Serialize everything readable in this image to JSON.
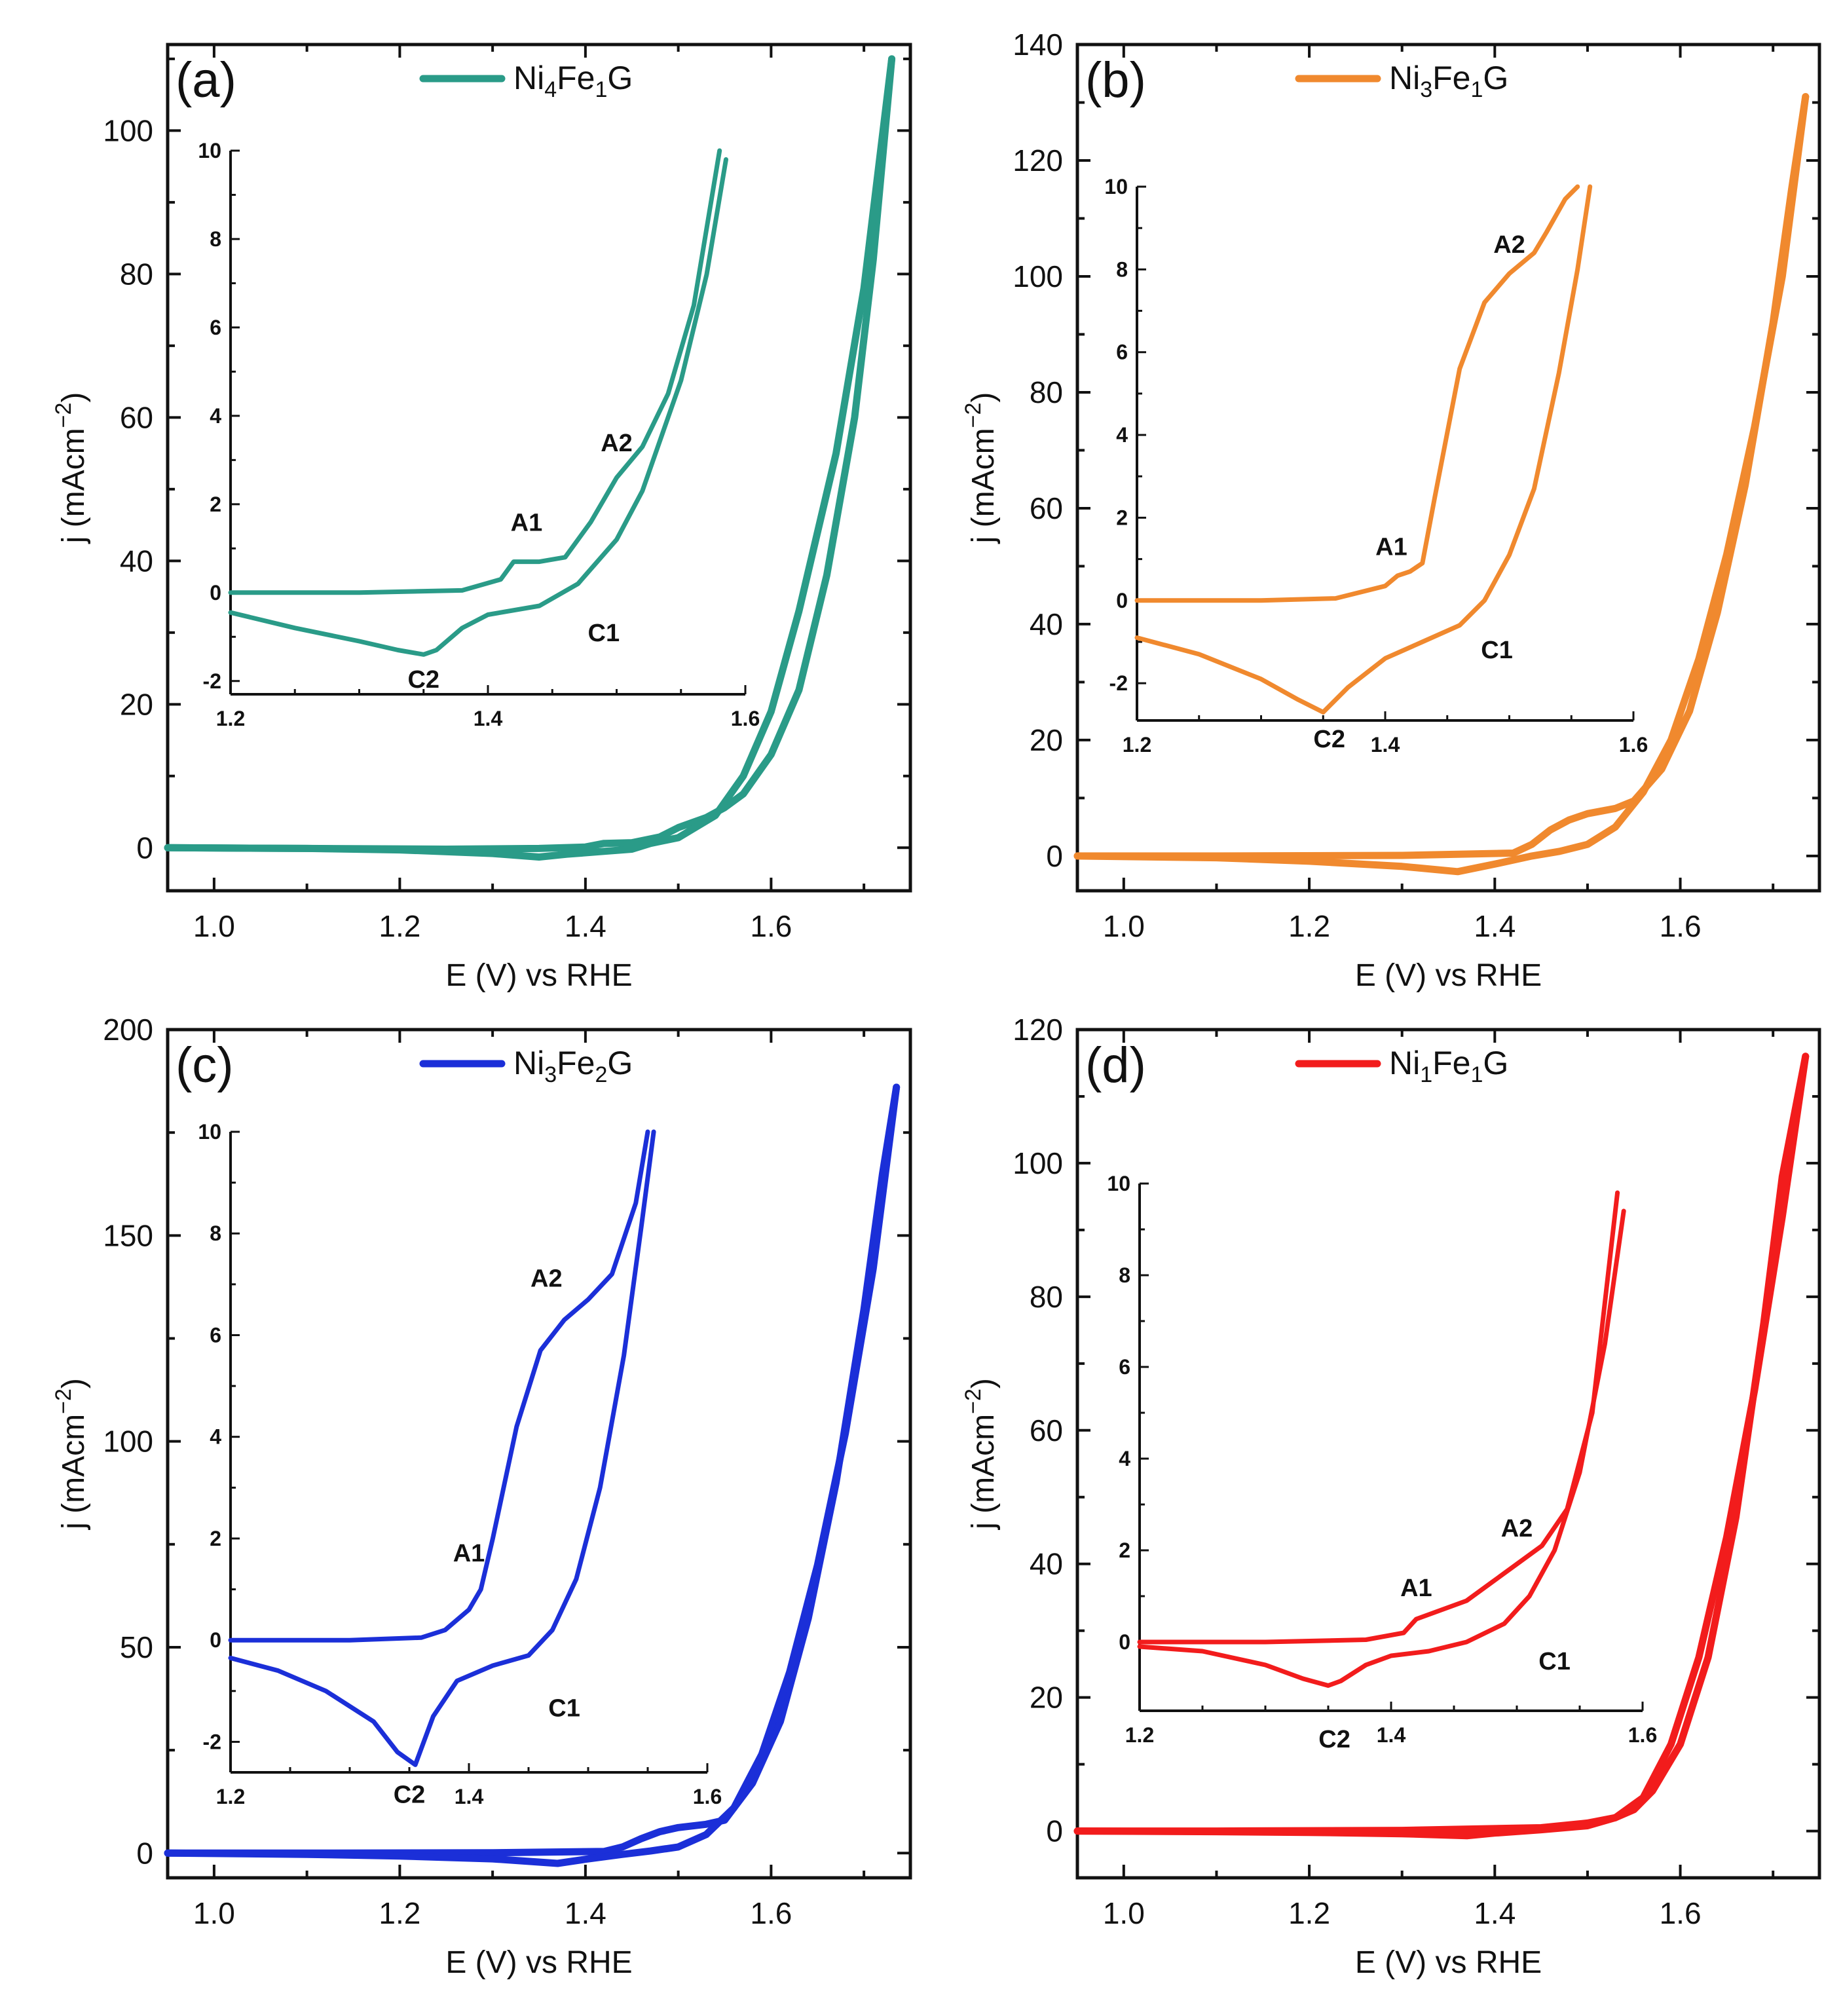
{
  "chart_data": [
    {
      "id": "a",
      "type": "line",
      "panel_label": "(a)",
      "color": "#2a9b88",
      "legend": {
        "sample": "Ni",
        "n1": "4",
        "mid": "Fe",
        "n2": "1",
        "suffix": "G"
      },
      "xlabel": "E (V) vs RHE",
      "ylabel": "j (mAcm",
      "ylabel_sup": "−2",
      "xlim": [
        0.95,
        1.75
      ],
      "ylim": [
        -6,
        112
      ],
      "xticks": [
        1.0,
        1.2,
        1.4,
        1.6
      ],
      "yticks": [
        0,
        20,
        40,
        60,
        80,
        100
      ],
      "xtick_labels": [
        "1.0",
        "1.2",
        "1.4",
        "1.6"
      ],
      "ytick_labels": [
        "0",
        "20",
        "40",
        "60",
        "80",
        "100"
      ],
      "series_forward": {
        "x": [
          0.95,
          1.1,
          1.25,
          1.35,
          1.4,
          1.42,
          1.45,
          1.48,
          1.5,
          1.53,
          1.55,
          1.57,
          1.6,
          1.63,
          1.66,
          1.69,
          1.71,
          1.73
        ],
        "y": [
          0,
          -0.1,
          -0.2,
          -0.1,
          0.1,
          0.6,
          0.7,
          1.5,
          2.8,
          4.2,
          5.6,
          7.5,
          13,
          22,
          38,
          60,
          82,
          110
        ]
      },
      "series_reverse": {
        "x": [
          1.73,
          1.7,
          1.67,
          1.63,
          1.6,
          1.57,
          1.54,
          1.5,
          1.47,
          1.45,
          1.42,
          1.38,
          1.35,
          1.3,
          1.2,
          1.1,
          0.95
        ],
        "y": [
          110,
          78,
          55,
          33,
          19,
          10,
          4.5,
          1.4,
          0.6,
          -0.2,
          -0.5,
          -0.9,
          -1.3,
          -0.8,
          -0.3,
          -0.1,
          0
        ]
      },
      "inset": {
        "xlim": [
          1.2,
          1.6
        ],
        "ylim": [
          -2.3,
          10
        ],
        "xticks": [
          1.2,
          1.4,
          1.6
        ],
        "xtick_labels": [
          "1.2",
          "1.4",
          "1.6"
        ],
        "yticks": [
          -2,
          0,
          2,
          4,
          6,
          8,
          10
        ],
        "ytick_labels": [
          "-2",
          "0",
          "2",
          "4",
          "6",
          "8",
          "10"
        ],
        "forward": {
          "x": [
            1.2,
            1.3,
            1.38,
            1.41,
            1.42,
            1.44,
            1.46,
            1.48,
            1.5,
            1.52,
            1.54,
            1.56,
            1.58
          ],
          "y": [
            0,
            0,
            0.05,
            0.3,
            0.7,
            0.7,
            0.8,
            1.6,
            2.6,
            3.3,
            4.5,
            6.5,
            10
          ]
        },
        "reverse": {
          "x": [
            1.585,
            1.57,
            1.55,
            1.52,
            1.5,
            1.47,
            1.44,
            1.4,
            1.38,
            1.36,
            1.35,
            1.33,
            1.3,
            1.25,
            1.2
          ],
          "y": [
            9.8,
            7.2,
            4.8,
            2.3,
            1.2,
            0.2,
            -0.3,
            -0.5,
            -0.8,
            -1.3,
            -1.4,
            -1.3,
            -1.1,
            -0.8,
            -0.45
          ]
        },
        "annotations": [
          {
            "label": "A1",
            "x": 1.43,
            "y": 1.4
          },
          {
            "label": "A2",
            "x": 1.5,
            "y": 3.2
          },
          {
            "label": "C1",
            "x": 1.49,
            "y": -1.1
          },
          {
            "label": "C2",
            "x": 1.35,
            "y": -2.15
          }
        ]
      }
    },
    {
      "id": "b",
      "type": "line",
      "panel_label": "(b)",
      "color": "#f0892e",
      "legend": {
        "sample": "Ni",
        "n1": "3",
        "mid": "Fe",
        "n2": "1",
        "suffix": "G"
      },
      "xlabel": "E (V) vs RHE",
      "ylabel": "j (mAcm",
      "ylabel_sup": "−2",
      "xlim": [
        0.95,
        1.75
      ],
      "ylim": [
        -6,
        140
      ],
      "xticks": [
        1.0,
        1.2,
        1.4,
        1.6
      ],
      "yticks": [
        0,
        20,
        40,
        60,
        80,
        100,
        120,
        140
      ],
      "xtick_labels": [
        "1.0",
        "1.2",
        "1.4",
        "1.6"
      ],
      "ytick_labels": [
        "0",
        "20",
        "40",
        "60",
        "80",
        "100",
        "120",
        "140"
      ],
      "series_forward": {
        "x": [
          0.95,
          1.1,
          1.3,
          1.42,
          1.44,
          1.46,
          1.48,
          1.5,
          1.53,
          1.55,
          1.58,
          1.61,
          1.64,
          1.67,
          1.7,
          1.72,
          1.735
        ],
        "y": [
          0,
          0,
          0.1,
          0.5,
          2,
          4.5,
          6.2,
          7.3,
          8.2,
          9.5,
          15,
          25,
          42,
          64,
          92,
          115,
          131
        ]
      },
      "series_reverse": {
        "x": [
          1.735,
          1.71,
          1.68,
          1.65,
          1.62,
          1.59,
          1.56,
          1.53,
          1.5,
          1.47,
          1.44,
          1.4,
          1.36,
          1.3,
          1.2,
          1.1,
          0.95
        ],
        "y": [
          131,
          100,
          74,
          52,
          34,
          20,
          11,
          5,
          2,
          0.8,
          0,
          -1.4,
          -2.7,
          -1.8,
          -0.9,
          -0.3,
          0
        ]
      },
      "inset": {
        "xlim": [
          1.2,
          1.6
        ],
        "ylim": [
          -2.9,
          10
        ],
        "xticks": [
          1.2,
          1.4,
          1.6
        ],
        "xtick_labels": [
          "1.2",
          "1.4",
          "1.6"
        ],
        "yticks": [
          -2,
          0,
          2,
          4,
          6,
          8,
          10
        ],
        "ytick_labels": [
          "-2",
          "0",
          "2",
          "4",
          "6",
          "8",
          "10"
        ],
        "forward": {
          "x": [
            1.2,
            1.3,
            1.36,
            1.4,
            1.41,
            1.42,
            1.43,
            1.44,
            1.46,
            1.48,
            1.5,
            1.52,
            1.53,
            1.545,
            1.555
          ],
          "y": [
            0,
            0,
            0.05,
            0.35,
            0.6,
            0.7,
            0.9,
            2.5,
            5.6,
            7.2,
            7.9,
            8.4,
            8.9,
            9.7,
            10
          ]
        },
        "reverse": {
          "x": [
            1.565,
            1.555,
            1.54,
            1.52,
            1.5,
            1.48,
            1.46,
            1.43,
            1.4,
            1.37,
            1.35,
            1.33,
            1.3,
            1.25,
            1.2
          ],
          "y": [
            10,
            8,
            5.5,
            2.7,
            1.1,
            0,
            -0.6,
            -1,
            -1.4,
            -2.1,
            -2.7,
            -2.4,
            -1.9,
            -1.3,
            -0.9
          ]
        },
        "annotations": [
          {
            "label": "A1",
            "x": 1.405,
            "y": 1.1
          },
          {
            "label": "A2",
            "x": 1.5,
            "y": 8.4
          },
          {
            "label": "C1",
            "x": 1.49,
            "y": -1.4
          },
          {
            "label": "C2",
            "x": 1.355,
            "y": -3.55
          }
        ]
      }
    },
    {
      "id": "c",
      "type": "line",
      "panel_label": "(c)",
      "color": "#1b2fd8",
      "legend": {
        "sample": "Ni",
        "n1": "3",
        "mid": "Fe",
        "n2": "2",
        "suffix": "G"
      },
      "xlabel": "E (V) vs RHE",
      "ylabel": "j (mAcm",
      "ylabel_sup": "−2",
      "xlim": [
        0.95,
        1.75
      ],
      "ylim": [
        -6,
        200
      ],
      "xticks": [
        1.0,
        1.2,
        1.4,
        1.6
      ],
      "yticks": [
        0,
        50,
        100,
        150,
        200
      ],
      "xtick_labels": [
        "1.0",
        "1.2",
        "1.4",
        "1.6"
      ],
      "ytick_labels": [
        "0",
        "50",
        "100",
        "150",
        "200"
      ],
      "series_forward": {
        "x": [
          0.95,
          1.1,
          1.3,
          1.42,
          1.44,
          1.46,
          1.48,
          1.5,
          1.53,
          1.55,
          1.58,
          1.61,
          1.64,
          1.67,
          1.7,
          1.72,
          1.735
        ],
        "y": [
          0,
          0,
          0.1,
          0.4,
          1.5,
          3.5,
          5.2,
          6.2,
          7,
          8,
          17,
          32,
          57,
          90,
          132,
          165,
          186
        ]
      },
      "series_reverse": {
        "x": [
          1.735,
          1.71,
          1.68,
          1.65,
          1.62,
          1.59,
          1.56,
          1.53,
          1.5,
          1.47,
          1.44,
          1.4,
          1.37,
          1.3,
          1.2,
          1.1,
          0.95
        ],
        "y": [
          186,
          142,
          102,
          70,
          44,
          24,
          11,
          4.5,
          1.5,
          0.5,
          -0.3,
          -1.5,
          -2.5,
          -1.4,
          -0.7,
          -0.3,
          0
        ]
      },
      "inset": {
        "xlim": [
          1.2,
          1.6
        ],
        "ylim": [
          -2.6,
          10
        ],
        "xticks": [
          1.2,
          1.4,
          1.6
        ],
        "xtick_labels": [
          "1.2",
          "1.4",
          "1.6"
        ],
        "yticks": [
          -2,
          0,
          2,
          4,
          6,
          8,
          10
        ],
        "ytick_labels": [
          "-2",
          "0",
          "2",
          "4",
          "6",
          "8",
          "10"
        ],
        "forward": {
          "x": [
            1.2,
            1.3,
            1.36,
            1.38,
            1.4,
            1.41,
            1.42,
            1.44,
            1.46,
            1.48,
            1.5,
            1.52,
            1.54,
            1.55
          ],
          "y": [
            0,
            0,
            0.05,
            0.2,
            0.6,
            1,
            2,
            4.2,
            5.7,
            6.3,
            6.7,
            7.2,
            8.6,
            10
          ]
        },
        "reverse": {
          "x": [
            1.555,
            1.545,
            1.53,
            1.51,
            1.49,
            1.47,
            1.45,
            1.42,
            1.39,
            1.37,
            1.355,
            1.34,
            1.32,
            1.28,
            1.24,
            1.2
          ],
          "y": [
            10,
            8.2,
            5.6,
            3,
            1.2,
            0.2,
            -0.3,
            -0.5,
            -0.8,
            -1.5,
            -2.45,
            -2.2,
            -1.6,
            -1,
            -0.6,
            -0.35
          ]
        },
        "annotations": [
          {
            "label": "A1",
            "x": 1.4,
            "y": 1.55
          },
          {
            "label": "A2",
            "x": 1.465,
            "y": 6.95
          },
          {
            "label": "C1",
            "x": 1.48,
            "y": -1.5
          },
          {
            "label": "C2",
            "x": 1.35,
            "y": -3.2
          }
        ]
      }
    },
    {
      "id": "d",
      "type": "line",
      "panel_label": "(d)",
      "color": "#f21c1c",
      "legend": {
        "sample": "Ni",
        "n1": "1",
        "mid": "Fe",
        "n2": "1",
        "suffix": "G"
      },
      "xlabel": "E (V) vs RHE",
      "ylabel": "j (mAcm",
      "ylabel_sup": "−2",
      "xlim": [
        0.95,
        1.75
      ],
      "ylim": [
        -7,
        120
      ],
      "xticks": [
        1.0,
        1.2,
        1.4,
        1.6
      ],
      "yticks": [
        0,
        20,
        40,
        60,
        80,
        100,
        120
      ],
      "xtick_labels": [
        "1.0",
        "1.2",
        "1.4",
        "1.6"
      ],
      "ytick_labels": [
        "0",
        "20",
        "40",
        "60",
        "80",
        "100",
        "120"
      ],
      "series_forward": {
        "x": [
          0.95,
          1.1,
          1.3,
          1.45,
          1.5,
          1.53,
          1.55,
          1.57,
          1.6,
          1.63,
          1.66,
          1.69,
          1.71,
          1.735
        ],
        "y": [
          0,
          0,
          0.1,
          0.5,
          1.2,
          2,
          3.2,
          6,
          13,
          26,
          47,
          76,
          98,
          116
        ]
      },
      "series_reverse": {
        "x": [
          1.735,
          1.71,
          1.68,
          1.65,
          1.62,
          1.59,
          1.56,
          1.53,
          1.5,
          1.45,
          1.4,
          1.37,
          1.3,
          1.2,
          1.1,
          0.95
        ],
        "y": [
          116,
          92,
          66,
          44,
          26,
          13,
          5,
          2,
          0.8,
          0.2,
          -0.3,
          -0.7,
          -0.4,
          -0.2,
          -0.1,
          0
        ]
      },
      "inset": {
        "xlim": [
          1.2,
          1.6
        ],
        "ylim": [
          -1.5,
          10
        ],
        "xticks": [
          1.2,
          1.4,
          1.6
        ],
        "xtick_labels": [
          "1.2",
          "1.4",
          "1.6"
        ],
        "yticks": [
          0,
          2,
          4,
          6,
          8,
          10
        ],
        "ytick_labels": [
          "0",
          "2",
          "4",
          "6",
          "8",
          "10"
        ],
        "forward": {
          "x": [
            1.2,
            1.3,
            1.38,
            1.41,
            1.42,
            1.44,
            1.46,
            1.48,
            1.5,
            1.52,
            1.54,
            1.56,
            1.58
          ],
          "y": [
            0,
            0,
            0.05,
            0.2,
            0.5,
            0.7,
            0.9,
            1.3,
            1.7,
            2.1,
            2.9,
            5,
            9.8
          ]
        },
        "reverse": {
          "x": [
            1.585,
            1.57,
            1.55,
            1.53,
            1.51,
            1.49,
            1.46,
            1.43,
            1.4,
            1.38,
            1.36,
            1.35,
            1.33,
            1.3,
            1.25,
            1.2
          ],
          "y": [
            9.4,
            6.5,
            3.7,
            2,
            1,
            0.4,
            0,
            -0.2,
            -0.3,
            -0.5,
            -0.85,
            -0.95,
            -0.8,
            -0.5,
            -0.2,
            -0.1
          ]
        },
        "annotations": [
          {
            "label": "A1",
            "x": 1.42,
            "y": 1.0
          },
          {
            "label": "A2",
            "x": 1.5,
            "y": 2.3
          },
          {
            "label": "C1",
            "x": 1.53,
            "y": -0.6
          },
          {
            "label": "C2",
            "x": 1.355,
            "y": -2.3
          }
        ]
      }
    }
  ]
}
